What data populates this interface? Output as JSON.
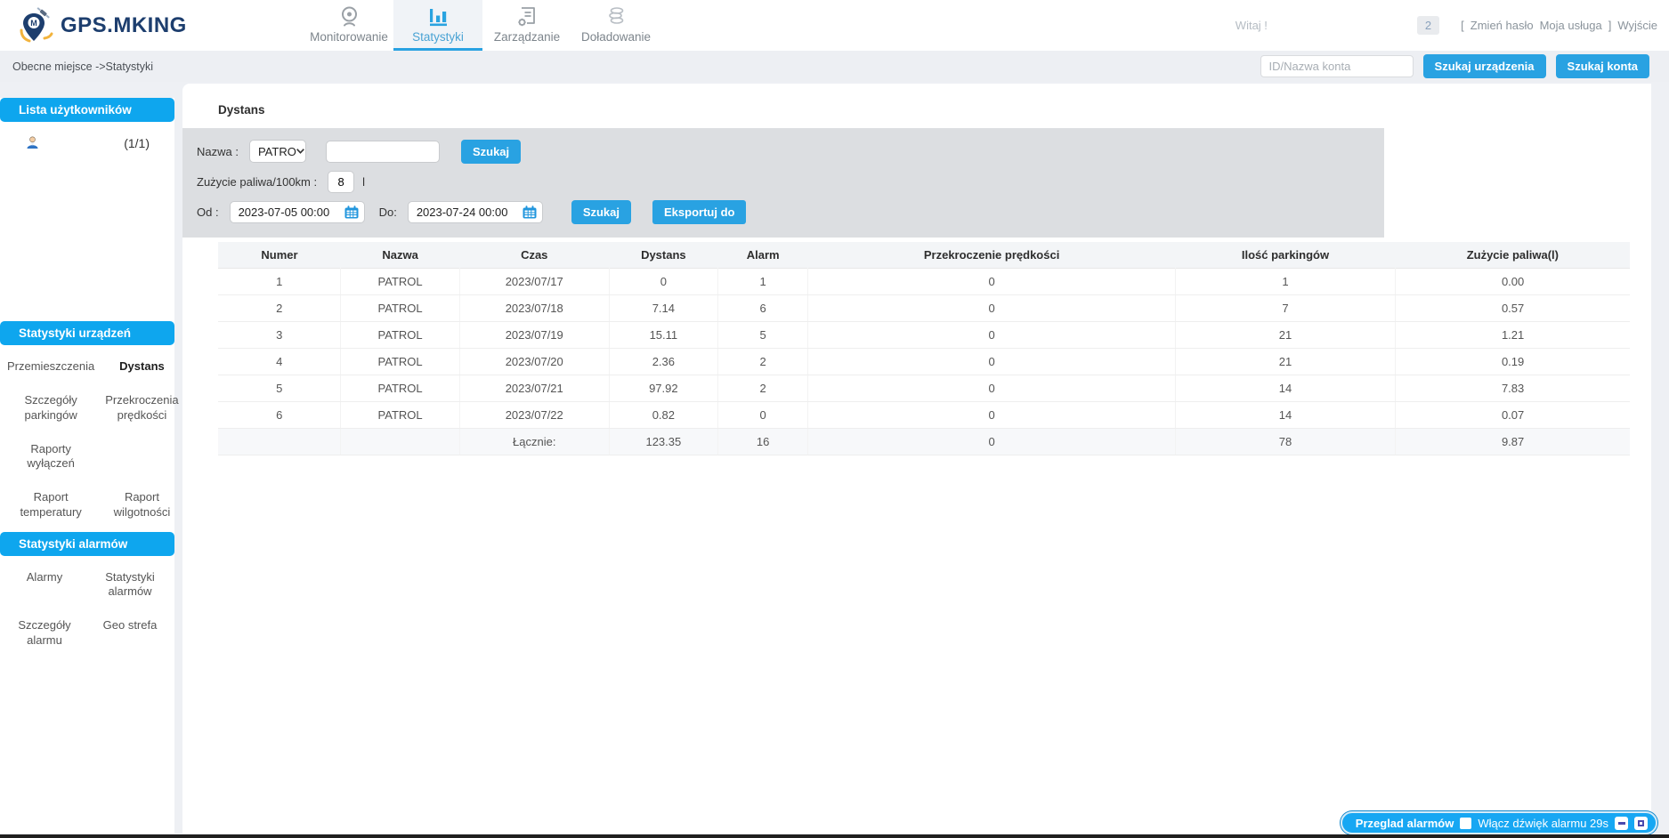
{
  "colors": {
    "accent": "#29a2e2",
    "sideblue": "#0ea6ee",
    "alarmblue": "#17a7f3",
    "logo-navy": "#1d3e6e"
  },
  "header": {
    "logo_text": "GPS.MKING",
    "nav": [
      {
        "label": "Monitorowanie",
        "icon": "webcam-icon"
      },
      {
        "label": "Statystyki",
        "icon": "bar-chart-icon"
      },
      {
        "label": "Zarządzanie",
        "icon": "document-gear-icon"
      },
      {
        "label": "Doładowanie",
        "icon": "coins-icon"
      }
    ],
    "greeting": "Witaj !",
    "badge_count": "2",
    "bracket_open": "[",
    "change_password": "Zmień hasło",
    "my_service": "Moja usługa",
    "bracket_close": "]",
    "logout": "Wyjście"
  },
  "breadcrumb": {
    "text": "Obecne miejsce ->Statystyki",
    "search_placeholder": "ID/Nazwa konta",
    "search_device_btn": "Szukaj urządzenia",
    "search_account_btn": "Szukaj konta"
  },
  "sidebar": {
    "users_header": "Lista użytkowników",
    "user_count": "(1/1)",
    "device_stats_header": "Statystyki urządzeń",
    "device_stats_items": [
      "Przemieszczenia",
      "Dystans",
      "Szczegóły parkingów",
      "Przekroczenia prędkości",
      "Raporty wyłączeń",
      "",
      "Raport temperatury",
      "Raport wilgotności"
    ],
    "device_stats_active_index": 1,
    "alarm_stats_header": "Statystyki alarmów",
    "alarm_stats_items": [
      "Alarmy",
      "Statystyki alarmów",
      "Szczegóły alarmu",
      "Geo strefa"
    ]
  },
  "main": {
    "title": "Dystans",
    "filters": {
      "name_label": "Nazwa :",
      "name_select_value": "PATRO",
      "name_search_btn": "Szukaj",
      "fuel_label": "Zużycie paliwa/100km :",
      "fuel_value": "8",
      "fuel_unit": "l",
      "from_label": "Od :",
      "from_value": "2023-07-05 00:00",
      "to_label": "Do:",
      "to_value": "2023-07-24 00:00",
      "date_search_btn": "Szukaj",
      "export_btn": "Eksportuj do"
    },
    "table": {
      "columns": [
        "Numer",
        "Nazwa",
        "Czas",
        "Dystans",
        "Alarm",
        "Przekroczenie prędkości",
        "Ilość parkingów",
        "Zużycie paliwa(l)"
      ],
      "rows": [
        [
          "1",
          "PATROL",
          "2023/07/17",
          "0",
          "1",
          "0",
          "1",
          "0.00"
        ],
        [
          "2",
          "PATROL",
          "2023/07/18",
          "7.14",
          "6",
          "0",
          "7",
          "0.57"
        ],
        [
          "3",
          "PATROL",
          "2023/07/19",
          "15.11",
          "5",
          "0",
          "21",
          "1.21"
        ],
        [
          "4",
          "PATROL",
          "2023/07/20",
          "2.36",
          "2",
          "0",
          "21",
          "0.19"
        ],
        [
          "5",
          "PATROL",
          "2023/07/21",
          "97.92",
          "2",
          "0",
          "14",
          "7.83"
        ],
        [
          "6",
          "PATROL",
          "2023/07/22",
          "0.82",
          "0",
          "0",
          "14",
          "0.07"
        ]
      ],
      "total_row": [
        "",
        "",
        "Łącznie:",
        "123.35",
        "16",
        "0",
        "78",
        "9.87"
      ]
    }
  },
  "alarm_bar": {
    "title": "Przeglad alarmów",
    "checkbox_label": "Włącz dźwięk alarmu 29s"
  }
}
